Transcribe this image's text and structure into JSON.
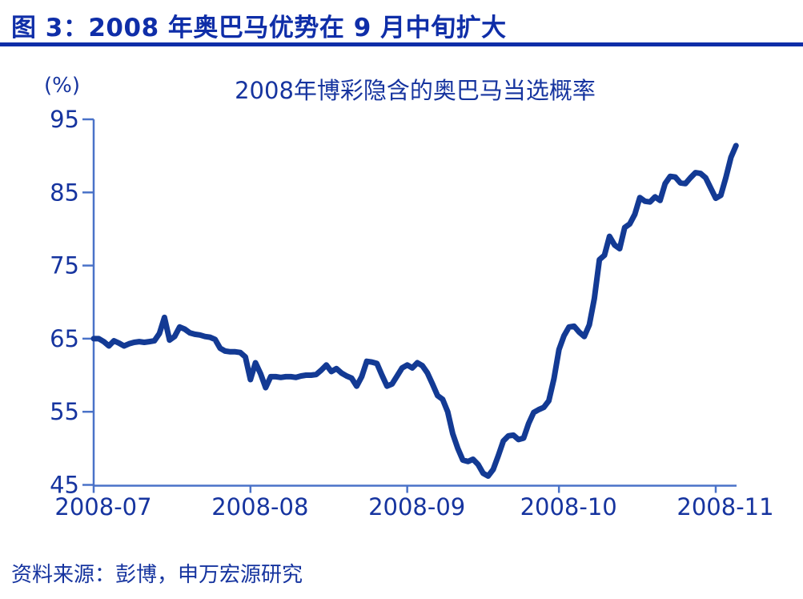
{
  "header": {
    "title": "图 3：2008 年奥巴马优势在 9 月中旬扩大",
    "accent_color": "#0f2ea8"
  },
  "chart_data": {
    "type": "line",
    "title": "2008年博彩隐含的奥巴马当选概率",
    "unit_label": "(%)",
    "x_tick_labels": [
      "2008-07",
      "2008-08",
      "2008-09",
      "2008-10",
      "2008-11"
    ],
    "x_tick_days": [
      0,
      31,
      62,
      92,
      123
    ],
    "x_start_date": "2008-07-01",
    "yticks": [
      45,
      55,
      65,
      75,
      85,
      95
    ],
    "ylim": [
      45,
      95
    ],
    "grid": false,
    "legend": "none",
    "axis_color": "#4a72c8",
    "text_color": "#16349f",
    "series": [
      {
        "name": "2008年博彩隐含的奥巴马当选概率",
        "color": "#133a94",
        "values_daily": [
          65.0,
          65.0,
          64.6,
          64.0,
          64.7,
          64.4,
          64.0,
          64.3,
          64.5,
          64.6,
          64.5,
          64.6,
          64.7,
          65.7,
          67.9,
          64.8,
          65.3,
          66.6,
          66.3,
          65.8,
          65.6,
          65.5,
          65.3,
          65.2,
          64.9,
          63.7,
          63.3,
          63.2,
          63.2,
          63.1,
          62.5,
          59.4,
          61.7,
          60.2,
          58.3,
          59.8,
          59.8,
          59.7,
          59.8,
          59.8,
          59.7,
          59.9,
          60.0,
          60.0,
          60.1,
          60.7,
          61.4,
          60.5,
          60.9,
          60.3,
          59.9,
          59.6,
          58.5,
          59.8,
          61.9,
          61.8,
          61.6,
          60.0,
          58.5,
          58.8,
          59.9,
          61.0,
          61.4,
          61.0,
          61.7,
          61.3,
          60.3,
          58.8,
          57.2,
          56.7,
          55.0,
          52.0,
          50.0,
          48.4,
          48.2,
          48.5,
          47.8,
          46.6,
          46.2,
          47.1,
          49.0,
          51.0,
          51.7,
          51.8,
          51.2,
          51.4,
          53.4,
          54.9,
          55.3,
          55.6,
          56.5,
          59.5,
          63.5,
          65.4,
          66.6,
          66.7,
          65.9,
          65.3,
          66.9,
          70.5,
          75.8,
          76.4,
          79.0,
          77.8,
          77.3,
          80.2,
          80.7,
          82.0,
          84.3,
          83.8,
          83.7,
          84.4,
          83.9,
          86.2,
          87.2,
          87.1,
          86.3,
          86.2,
          87.0,
          87.7,
          87.6,
          87.0,
          85.6,
          84.2,
          84.6,
          87.0,
          89.8,
          91.4
        ]
      }
    ]
  },
  "source": {
    "text": "资料来源：彭博，申万宏源研究"
  }
}
